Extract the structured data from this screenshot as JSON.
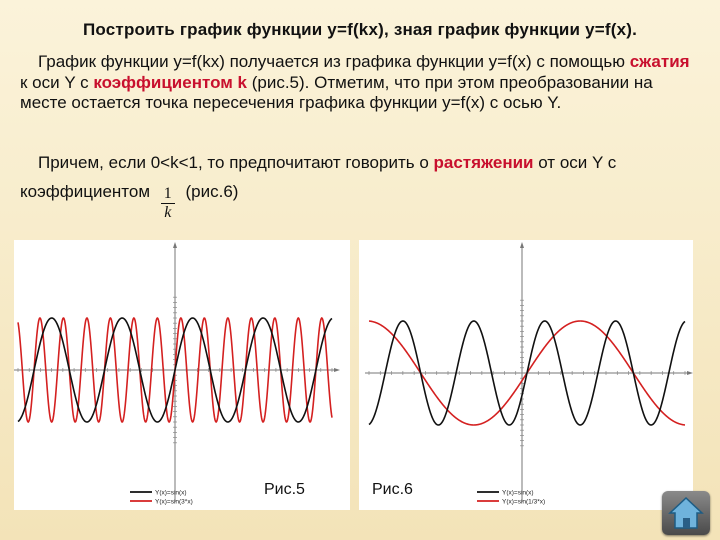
{
  "slide": {
    "title": "Построить график функции y=f(kx), зная график функции y=f(x).",
    "paragraph1": {
      "part1": "График функции y=f(kx) получается из графика функции y=f(x) с помощью ",
      "highlight1": "сжатия",
      "part2": " к оси Y с ",
      "highlight2": "коэффициентом k",
      "part3": " (рис.5). Отметим, что при этом преобразовании на месте остается точка пересечения графика функции y=f(x) с осью Y."
    },
    "paragraph2": {
      "part1": "Причем, если 0<k<1, то предпочитают говорить о ",
      "highlight": "растяжении",
      "part2": " от оси Y с коэффициентом ",
      "frac_num": "1",
      "frac_den": "k",
      "part3": " (рис.6)"
    },
    "caption_left": "Рис.5",
    "caption_right": "Рис.6"
  },
  "figure_left": {
    "legend": [
      "Y(x)=sin(x)",
      "Y(x)=sin(3*x)"
    ],
    "k": 3,
    "x_range": [
      -14,
      14
    ],
    "y_range": [
      -1.5,
      1.5
    ],
    "colors": {
      "base": "#111111",
      "transformed": "#d42020"
    }
  },
  "figure_right": {
    "legend": [
      "Y(x)=sin(x)",
      "Y(x)=sin(1/3*x)"
    ],
    "k": 0.3333,
    "x_range": [
      -14,
      14
    ],
    "y_range": [
      -1.5,
      1.5
    ],
    "colors": {
      "base": "#111111",
      "transformed": "#d42020"
    }
  },
  "ui": {
    "home_icon": "home-icon"
  }
}
